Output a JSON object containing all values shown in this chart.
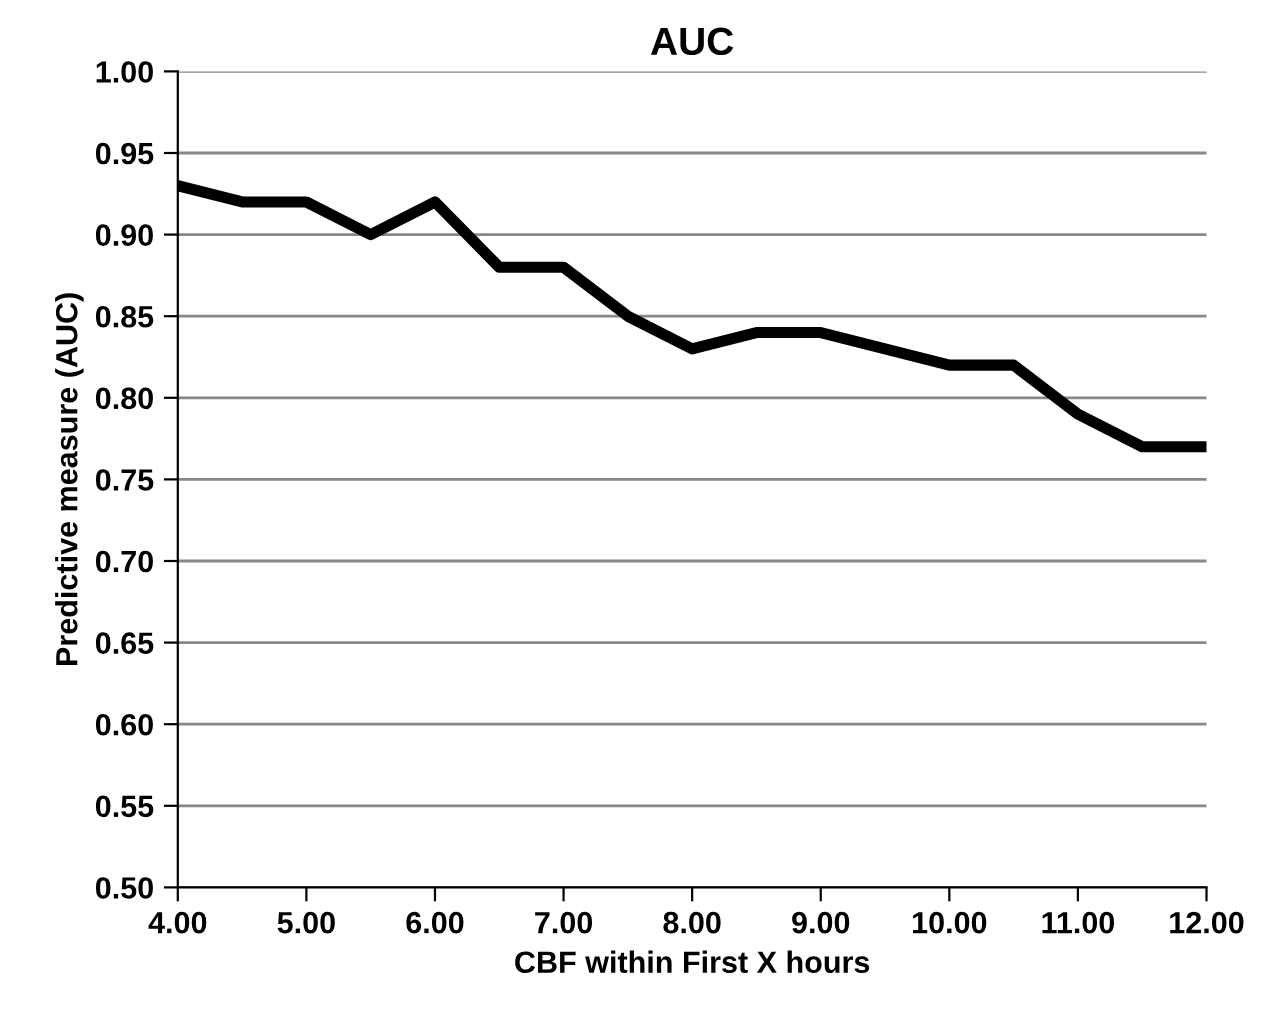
{
  "chart_data": {
    "type": "line",
    "title": "AUC",
    "xlabel": "CBF within First X hours",
    "ylabel": "Predictive measure (AUC)",
    "x": [
      4,
      4.5,
      5,
      5.5,
      6,
      6.5,
      7,
      7.5,
      8,
      8.5,
      9,
      9.5,
      10,
      10.5,
      11,
      11.5,
      12
    ],
    "series": [
      {
        "color": "#000000",
        "values": [
          0.93,
          0.92,
          0.92,
          0.9,
          0.92,
          0.88,
          0.88,
          0.85,
          0.83,
          0.84,
          0.84,
          0.83,
          0.82,
          0.82,
          0.79,
          0.77,
          0.77
        ]
      }
    ],
    "xlim": [
      4,
      12
    ],
    "xticks": [
      {
        "value": 4,
        "label": "4.00"
      },
      {
        "value": 5,
        "label": "5.00"
      },
      {
        "value": 6,
        "label": "6.00"
      },
      {
        "value": 7,
        "label": "7.00"
      },
      {
        "value": 8,
        "label": "8.00"
      },
      {
        "value": 9,
        "label": "9.00"
      },
      {
        "value": 10,
        "label": "10.00"
      },
      {
        "value": 11,
        "label": "11.00"
      },
      {
        "value": 12,
        "label": "12.00"
      }
    ],
    "ylim": [
      0.5,
      1.0
    ],
    "yticks": [
      {
        "value": 0.5,
        "label": "0.50"
      },
      {
        "value": 0.55,
        "label": "0.55"
      },
      {
        "value": 0.6,
        "label": "0.60"
      },
      {
        "value": 0.65,
        "label": "0.65"
      },
      {
        "value": 0.7,
        "label": "0.70"
      },
      {
        "value": 0.75,
        "label": "0.75"
      },
      {
        "value": 0.8,
        "label": "0.80"
      },
      {
        "value": 0.85,
        "label": "0.85"
      },
      {
        "value": 0.9,
        "label": "0.90"
      },
      {
        "value": 0.95,
        "label": "0.95"
      },
      {
        "value": 1.0,
        "label": "1.00"
      }
    ],
    "grid": "y",
    "marker": "none",
    "line_style": "solid"
  }
}
